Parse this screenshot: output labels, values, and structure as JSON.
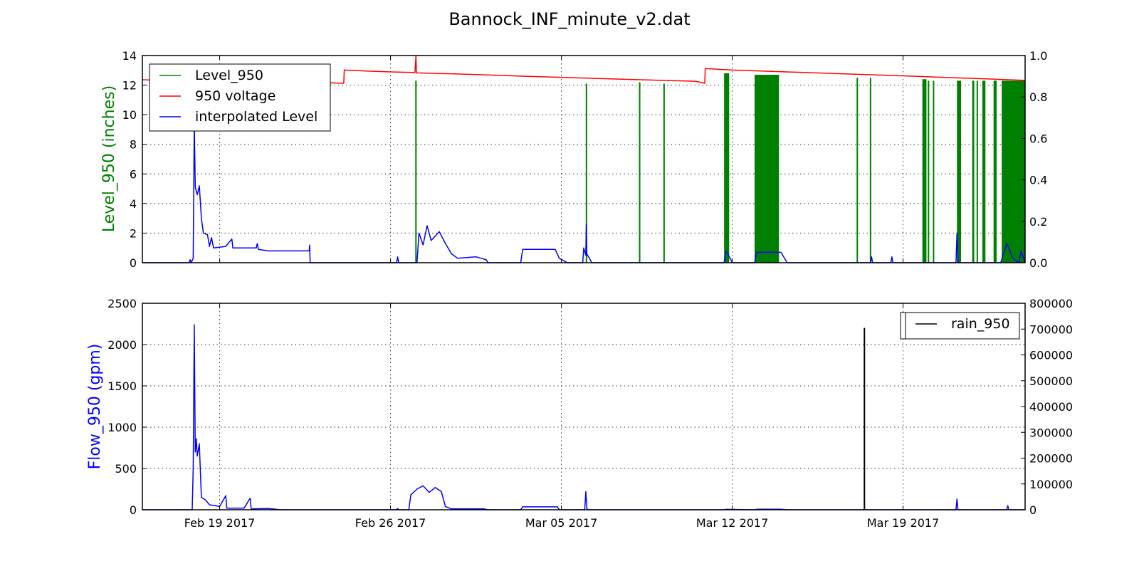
{
  "figure": {
    "title": "Bannock_INF_minute_v2.dat",
    "x_tick_labels": [
      "Feb 19 2017",
      "Feb 26 2017",
      "Mar 05 2017",
      "Mar 12 2017",
      "Mar 19 2017"
    ]
  },
  "colors": {
    "level": "#008000",
    "voltage": "#ff0000",
    "interp": "#0000ff",
    "flow": "#0000ff",
    "rain": "#000000"
  },
  "chart_data": [
    {
      "type": "line",
      "panel": "top",
      "title": "Bannock_INF_minute_v2.dat",
      "xlabel": "",
      "ylabel": "Level_950 (inches)",
      "ylabel_color": "#008000",
      "xlim": [
        "2017-02-15T20:00",
        "2017-03-24T00:00"
      ],
      "x_ticks": [
        "2017-02-19",
        "2017-02-26",
        "2017-03-05",
        "2017-03-12",
        "2017-03-19"
      ],
      "x_tick_labels": [
        "Feb 19 2017",
        "Feb 26 2017",
        "Mar 05 2017",
        "Mar 12 2017",
        "Mar 19 2017"
      ],
      "ylim": [
        0,
        14
      ],
      "y_ticks": [
        0,
        2,
        4,
        6,
        8,
        10,
        12,
        14
      ],
      "y2lim": [
        0,
        1.0
      ],
      "y2_ticks": [
        "0.0",
        "0.2",
        "0.4",
        "0.6",
        "0.8",
        "1.0"
      ],
      "grid": true,
      "legend": {
        "position": "top-left",
        "entries": [
          "Level_950",
          "950 voltage",
          "interpolated Level"
        ]
      },
      "series": [
        {
          "name": "Level_950",
          "axis": "left",
          "color": "#008000",
          "style": "spikes",
          "spikes": [
            {
              "x": "2017-02-27T01:00",
              "y": 12.3
            },
            {
              "x": "2017-03-06T00:40",
              "y": 12.1
            },
            {
              "x": "2017-03-08T05:00",
              "y": 12.2
            },
            {
              "x": "2017-03-09T05:00",
              "y": 12.1
            },
            {
              "x": "2017-03-20T01:00",
              "y": 12.3
            },
            {
              "x": "2017-03-20T06:00",
              "y": 12.3
            },
            {
              "x": "2017-03-22T01:00",
              "y": 12.3
            },
            {
              "x": "2017-03-17T03:00",
              "y": 12.5
            },
            {
              "x": "2017-03-17T16:00",
              "y": 12.5
            }
          ],
          "bands": [
            {
              "x0": "2017-03-11T16:00",
              "x1": "2017-03-11T21:00",
              "y": 12.8
            },
            {
              "x0": "2017-03-12T22:00",
              "x1": "2017-03-13T22:00",
              "y": 12.7
            },
            {
              "x0": "2017-03-19T19:00",
              "x1": "2017-03-19T23:00",
              "y": 12.4
            },
            {
              "x0": "2017-03-21T05:00",
              "x1": "2017-03-21T09:00",
              "y": 12.3
            },
            {
              "x0": "2017-03-21T20:00",
              "x1": "2017-03-21T22:00",
              "y": 12.3
            },
            {
              "x0": "2017-03-22T06:00",
              "x1": "2017-03-22T09:00",
              "y": 12.3
            },
            {
              "x0": "2017-03-22T17:00",
              "x1": "2017-03-22T20:00",
              "y": 12.3
            },
            {
              "x0": "2017-03-23T01:00",
              "x1": "2017-03-24T00:00",
              "y": 12.3
            }
          ]
        },
        {
          "name": "950 voltage",
          "axis": "right",
          "color": "#ff0000",
          "style": "line",
          "points": [
            [
              "2017-02-15T20:00",
              0.883
            ],
            [
              "2017-02-16T12:00",
              0.88
            ],
            [
              "2017-02-17T12:00",
              0.877
            ],
            [
              "2017-02-18T12:00",
              0.876
            ],
            [
              "2017-02-19T12:00",
              0.875
            ],
            [
              "2017-02-20T12:00",
              0.874
            ],
            [
              "2017-02-21T12:00",
              0.873
            ],
            [
              "2017-02-22T12:00",
              0.871
            ],
            [
              "2017-02-23T12:00",
              0.868
            ],
            [
              "2017-02-24T02:00",
              0.866
            ],
            [
              "2017-02-24T02:30",
              0.93
            ],
            [
              "2017-02-25T00:00",
              0.925
            ],
            [
              "2017-02-26T00:00",
              0.921
            ],
            [
              "2017-02-27T00:00",
              0.918
            ],
            [
              "2017-02-27T01:00",
              1.0
            ],
            [
              "2017-02-27T01:30",
              0.916
            ],
            [
              "2017-02-28T12:00",
              0.912
            ],
            [
              "2017-03-01T12:00",
              0.908
            ],
            [
              "2017-03-02T12:00",
              0.904
            ],
            [
              "2017-03-03T12:00",
              0.9
            ],
            [
              "2017-03-05T00:00",
              0.895
            ],
            [
              "2017-03-06T12:00",
              0.889
            ],
            [
              "2017-03-08T00:00",
              0.884
            ],
            [
              "2017-03-09T12:00",
              0.879
            ],
            [
              "2017-03-10T12:00",
              0.876
            ],
            [
              "2017-03-10T21:00",
              0.866
            ],
            [
              "2017-03-10T21:30",
              0.937
            ],
            [
              "2017-03-12T00:00",
              0.93
            ],
            [
              "2017-03-13T12:00",
              0.924
            ],
            [
              "2017-03-15T00:00",
              0.918
            ],
            [
              "2017-03-16T12:00",
              0.912
            ],
            [
              "2017-03-18T00:00",
              0.906
            ],
            [
              "2017-03-19T12:00",
              0.9
            ],
            [
              "2017-03-21T00:00",
              0.893
            ],
            [
              "2017-03-22T12:00",
              0.887
            ],
            [
              "2017-03-24T00:00",
              0.88
            ]
          ]
        },
        {
          "name": "interpolated Level",
          "axis": "left",
          "color": "#0000ff",
          "style": "line",
          "points": [
            [
              "2017-02-15T20:00",
              0
            ],
            [
              "2017-02-17T18:00",
              0
            ],
            [
              "2017-02-17T19:00",
              0.2
            ],
            [
              "2017-02-17T20:00",
              0
            ],
            [
              "2017-02-17T22:00",
              0.3
            ],
            [
              "2017-02-17T23:00",
              9.6
            ],
            [
              "2017-02-18T00:00",
              5.1
            ],
            [
              "2017-02-18T02:00",
              4.6
            ],
            [
              "2017-02-18T04:00",
              5.2
            ],
            [
              "2017-02-18T06:00",
              3.0
            ],
            [
              "2017-02-18T08:00",
              2.0
            ],
            [
              "2017-02-18T12:00",
              1.9
            ],
            [
              "2017-02-18T14:00",
              1.1
            ],
            [
              "2017-02-18T16:00",
              1.7
            ],
            [
              "2017-02-18T18:00",
              1.0
            ],
            [
              "2017-02-19T06:00",
              1.1
            ],
            [
              "2017-02-19T12:00",
              1.6
            ],
            [
              "2017-02-19T13:00",
              1.0
            ],
            [
              "2017-02-20T12:00",
              1.0
            ],
            [
              "2017-02-20T13:00",
              1.3
            ],
            [
              "2017-02-20T14:00",
              0.9
            ],
            [
              "2017-02-21T00:00",
              0.8
            ],
            [
              "2017-02-22T16:00",
              0.8
            ],
            [
              "2017-02-22T16:30",
              1.2
            ],
            [
              "2017-02-22T17:00",
              0
            ],
            [
              "2017-02-26T06:00",
              0
            ],
            [
              "2017-02-26T07:00",
              0.4
            ],
            [
              "2017-02-26T08:00",
              0
            ],
            [
              "2017-02-27T02:00",
              0
            ],
            [
              "2017-02-27T04:00",
              2.0
            ],
            [
              "2017-02-27T08:00",
              1.2
            ],
            [
              "2017-02-27T12:00",
              2.5
            ],
            [
              "2017-02-27T16:00",
              1.5
            ],
            [
              "2017-02-28T00:00",
              2.1
            ],
            [
              "2017-02-28T06:00",
              1.3
            ],
            [
              "2017-02-28T12:00",
              0.6
            ],
            [
              "2017-02-28T18:00",
              0.3
            ],
            [
              "2017-03-01T12:00",
              0.4
            ],
            [
              "2017-03-01T22:00",
              0.2
            ],
            [
              "2017-03-02T00:00",
              0
            ],
            [
              "2017-03-03T08:00",
              0
            ],
            [
              "2017-03-03T10:00",
              0.9
            ],
            [
              "2017-03-04T18:00",
              0.9
            ],
            [
              "2017-03-04T22:00",
              0.3
            ],
            [
              "2017-03-05T06:00",
              0
            ],
            [
              "2017-03-05T21:00",
              0
            ],
            [
              "2017-03-05T22:00",
              1.0
            ],
            [
              "2017-03-06T00:00",
              0.5
            ],
            [
              "2017-03-06T00:30",
              2.6
            ],
            [
              "2017-03-06T01:00",
              0.6
            ],
            [
              "2017-03-06T06:00",
              0
            ],
            [
              "2017-03-11T16:00",
              0
            ],
            [
              "2017-03-11T18:00",
              0.8
            ],
            [
              "2017-03-11T22:00",
              0.3
            ],
            [
              "2017-03-12T00:00",
              0
            ],
            [
              "2017-03-12T22:00",
              0
            ],
            [
              "2017-03-13T00:00",
              0.7
            ],
            [
              "2017-03-14T00:00",
              0.7
            ],
            [
              "2017-03-14T06:00",
              0
            ],
            [
              "2017-03-17T16:00",
              0
            ],
            [
              "2017-03-17T17:00",
              0.4
            ],
            [
              "2017-03-17T18:00",
              0
            ],
            [
              "2017-03-18T12:00",
              0
            ],
            [
              "2017-03-18T13:00",
              0.4
            ],
            [
              "2017-03-18T14:00",
              0
            ],
            [
              "2017-03-21T04:00",
              0
            ],
            [
              "2017-03-21T05:00",
              2.0
            ],
            [
              "2017-03-21T06:00",
              0
            ],
            [
              "2017-03-23T00:00",
              0
            ],
            [
              "2017-03-23T06:00",
              1.3
            ],
            [
              "2017-03-23T12:00",
              0.3
            ],
            [
              "2017-03-23T18:00",
              0
            ],
            [
              "2017-03-23T20:00",
              0.8
            ],
            [
              "2017-03-24T00:00",
              0
            ]
          ]
        }
      ]
    },
    {
      "type": "line",
      "panel": "bottom",
      "xlabel": "",
      "ylabel": "Flow_950 (gpm)",
      "ylabel_color": "#0000ff",
      "xlim": [
        "2017-02-15T20:00",
        "2017-03-24T00:00"
      ],
      "x_ticks": [
        "2017-02-19",
        "2017-02-26",
        "2017-03-05",
        "2017-03-12",
        "2017-03-19"
      ],
      "x_tick_labels": [
        "Feb 19 2017",
        "Feb 26 2017",
        "Mar 05 2017",
        "Mar 12 2017",
        "Mar 19 2017"
      ],
      "ylim": [
        0,
        2500
      ],
      "y_ticks": [
        0,
        500,
        1000,
        1500,
        2000,
        2500
      ],
      "y2lim": [
        0,
        800000
      ],
      "y2_ticks": [
        0,
        100000,
        200000,
        300000,
        400000,
        500000,
        600000,
        700000,
        800000
      ],
      "grid": true,
      "legend": {
        "position": "top-right",
        "entries": [
          "rain_950"
        ]
      },
      "series": [
        {
          "name": "Flow_950",
          "axis": "left",
          "color": "#0000ff",
          "style": "line",
          "points": [
            [
              "2017-02-15T20:00",
              0
            ],
            [
              "2017-02-17T21:00",
              0
            ],
            [
              "2017-02-17T22:00",
              500
            ],
            [
              "2017-02-17T23:00",
              2240
            ],
            [
              "2017-02-18T00:00",
              700
            ],
            [
              "2017-02-18T01:00",
              860
            ],
            [
              "2017-02-18T02:00",
              650
            ],
            [
              "2017-02-18T04:00",
              800
            ],
            [
              "2017-02-18T06:00",
              150
            ],
            [
              "2017-02-18T10:00",
              120
            ],
            [
              "2017-02-18T14:00",
              60
            ],
            [
              "2017-02-19T00:00",
              40
            ],
            [
              "2017-02-19T06:00",
              170
            ],
            [
              "2017-02-19T07:00",
              20
            ],
            [
              "2017-02-20T00:00",
              20
            ],
            [
              "2017-02-20T06:00",
              140
            ],
            [
              "2017-02-20T07:00",
              10
            ],
            [
              "2017-02-21T00:00",
              15
            ],
            [
              "2017-02-21T12:00",
              0
            ],
            [
              "2017-02-26T06:00",
              0
            ],
            [
              "2017-02-26T07:00",
              15
            ],
            [
              "2017-02-26T08:00",
              0
            ],
            [
              "2017-02-26T18:00",
              0
            ],
            [
              "2017-02-26T20:00",
              180
            ],
            [
              "2017-02-27T02:00",
              250
            ],
            [
              "2017-02-27T08:00",
              290
            ],
            [
              "2017-02-27T14:00",
              210
            ],
            [
              "2017-02-27T20:00",
              270
            ],
            [
              "2017-02-28T02:00",
              220
            ],
            [
              "2017-02-28T06:00",
              40
            ],
            [
              "2017-02-28T12:00",
              10
            ],
            [
              "2017-03-01T20:00",
              10
            ],
            [
              "2017-03-02T00:00",
              0
            ],
            [
              "2017-03-03T08:00",
              0
            ],
            [
              "2017-03-03T10:00",
              35
            ],
            [
              "2017-03-04T20:00",
              35
            ],
            [
              "2017-03-04T22:00",
              0
            ],
            [
              "2017-03-05T23:00",
              0
            ],
            [
              "2017-03-06T00:00",
              220
            ],
            [
              "2017-03-06T01:00",
              20
            ],
            [
              "2017-03-06T02:00",
              0
            ],
            [
              "2017-03-11T16:00",
              0
            ],
            [
              "2017-03-11T18:00",
              5
            ],
            [
              "2017-03-12T22:00",
              0
            ],
            [
              "2017-03-13T00:00",
              6
            ],
            [
              "2017-03-14T00:00",
              6
            ],
            [
              "2017-03-14T06:00",
              0
            ],
            [
              "2017-03-21T04:00",
              0
            ],
            [
              "2017-03-21T05:00",
              130
            ],
            [
              "2017-03-21T06:00",
              0
            ],
            [
              "2017-03-23T06:00",
              0
            ],
            [
              "2017-03-23T07:00",
              50
            ],
            [
              "2017-03-23T08:00",
              0
            ],
            [
              "2017-03-24T00:00",
              0
            ]
          ]
        },
        {
          "name": "rain_950",
          "axis": "right",
          "color": "#000000",
          "style": "spikes",
          "spikes": [
            {
              "x": "2017-03-17T10:00",
              "y": 705000
            }
          ]
        }
      ]
    }
  ]
}
